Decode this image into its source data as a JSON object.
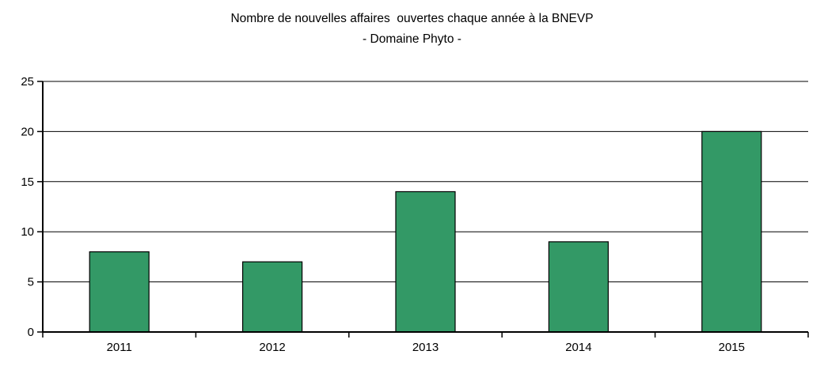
{
  "chart_data": {
    "type": "bar",
    "title": "Nombre de nouvelles affaires  ouvertes chaque année à la BNEVP",
    "subtitle": "- Domaine Phyto -",
    "categories": [
      "2011",
      "2012",
      "2013",
      "2014",
      "2015"
    ],
    "values": [
      8,
      7,
      14,
      9,
      20
    ],
    "series_name": "Nombre de nouvelles affaires",
    "xlabel": "",
    "ylabel": "",
    "ylim": [
      0,
      25
    ],
    "ytick_step": 5,
    "yticks": [
      0,
      5,
      10,
      15,
      20,
      25
    ],
    "grid": true,
    "legend": false,
    "bar_color": "#339966",
    "bar_border_color": "#000000",
    "axis_color": "#000000",
    "gridline_color": "#000000",
    "text_color": "#000000",
    "background_color": "#ffffff"
  }
}
